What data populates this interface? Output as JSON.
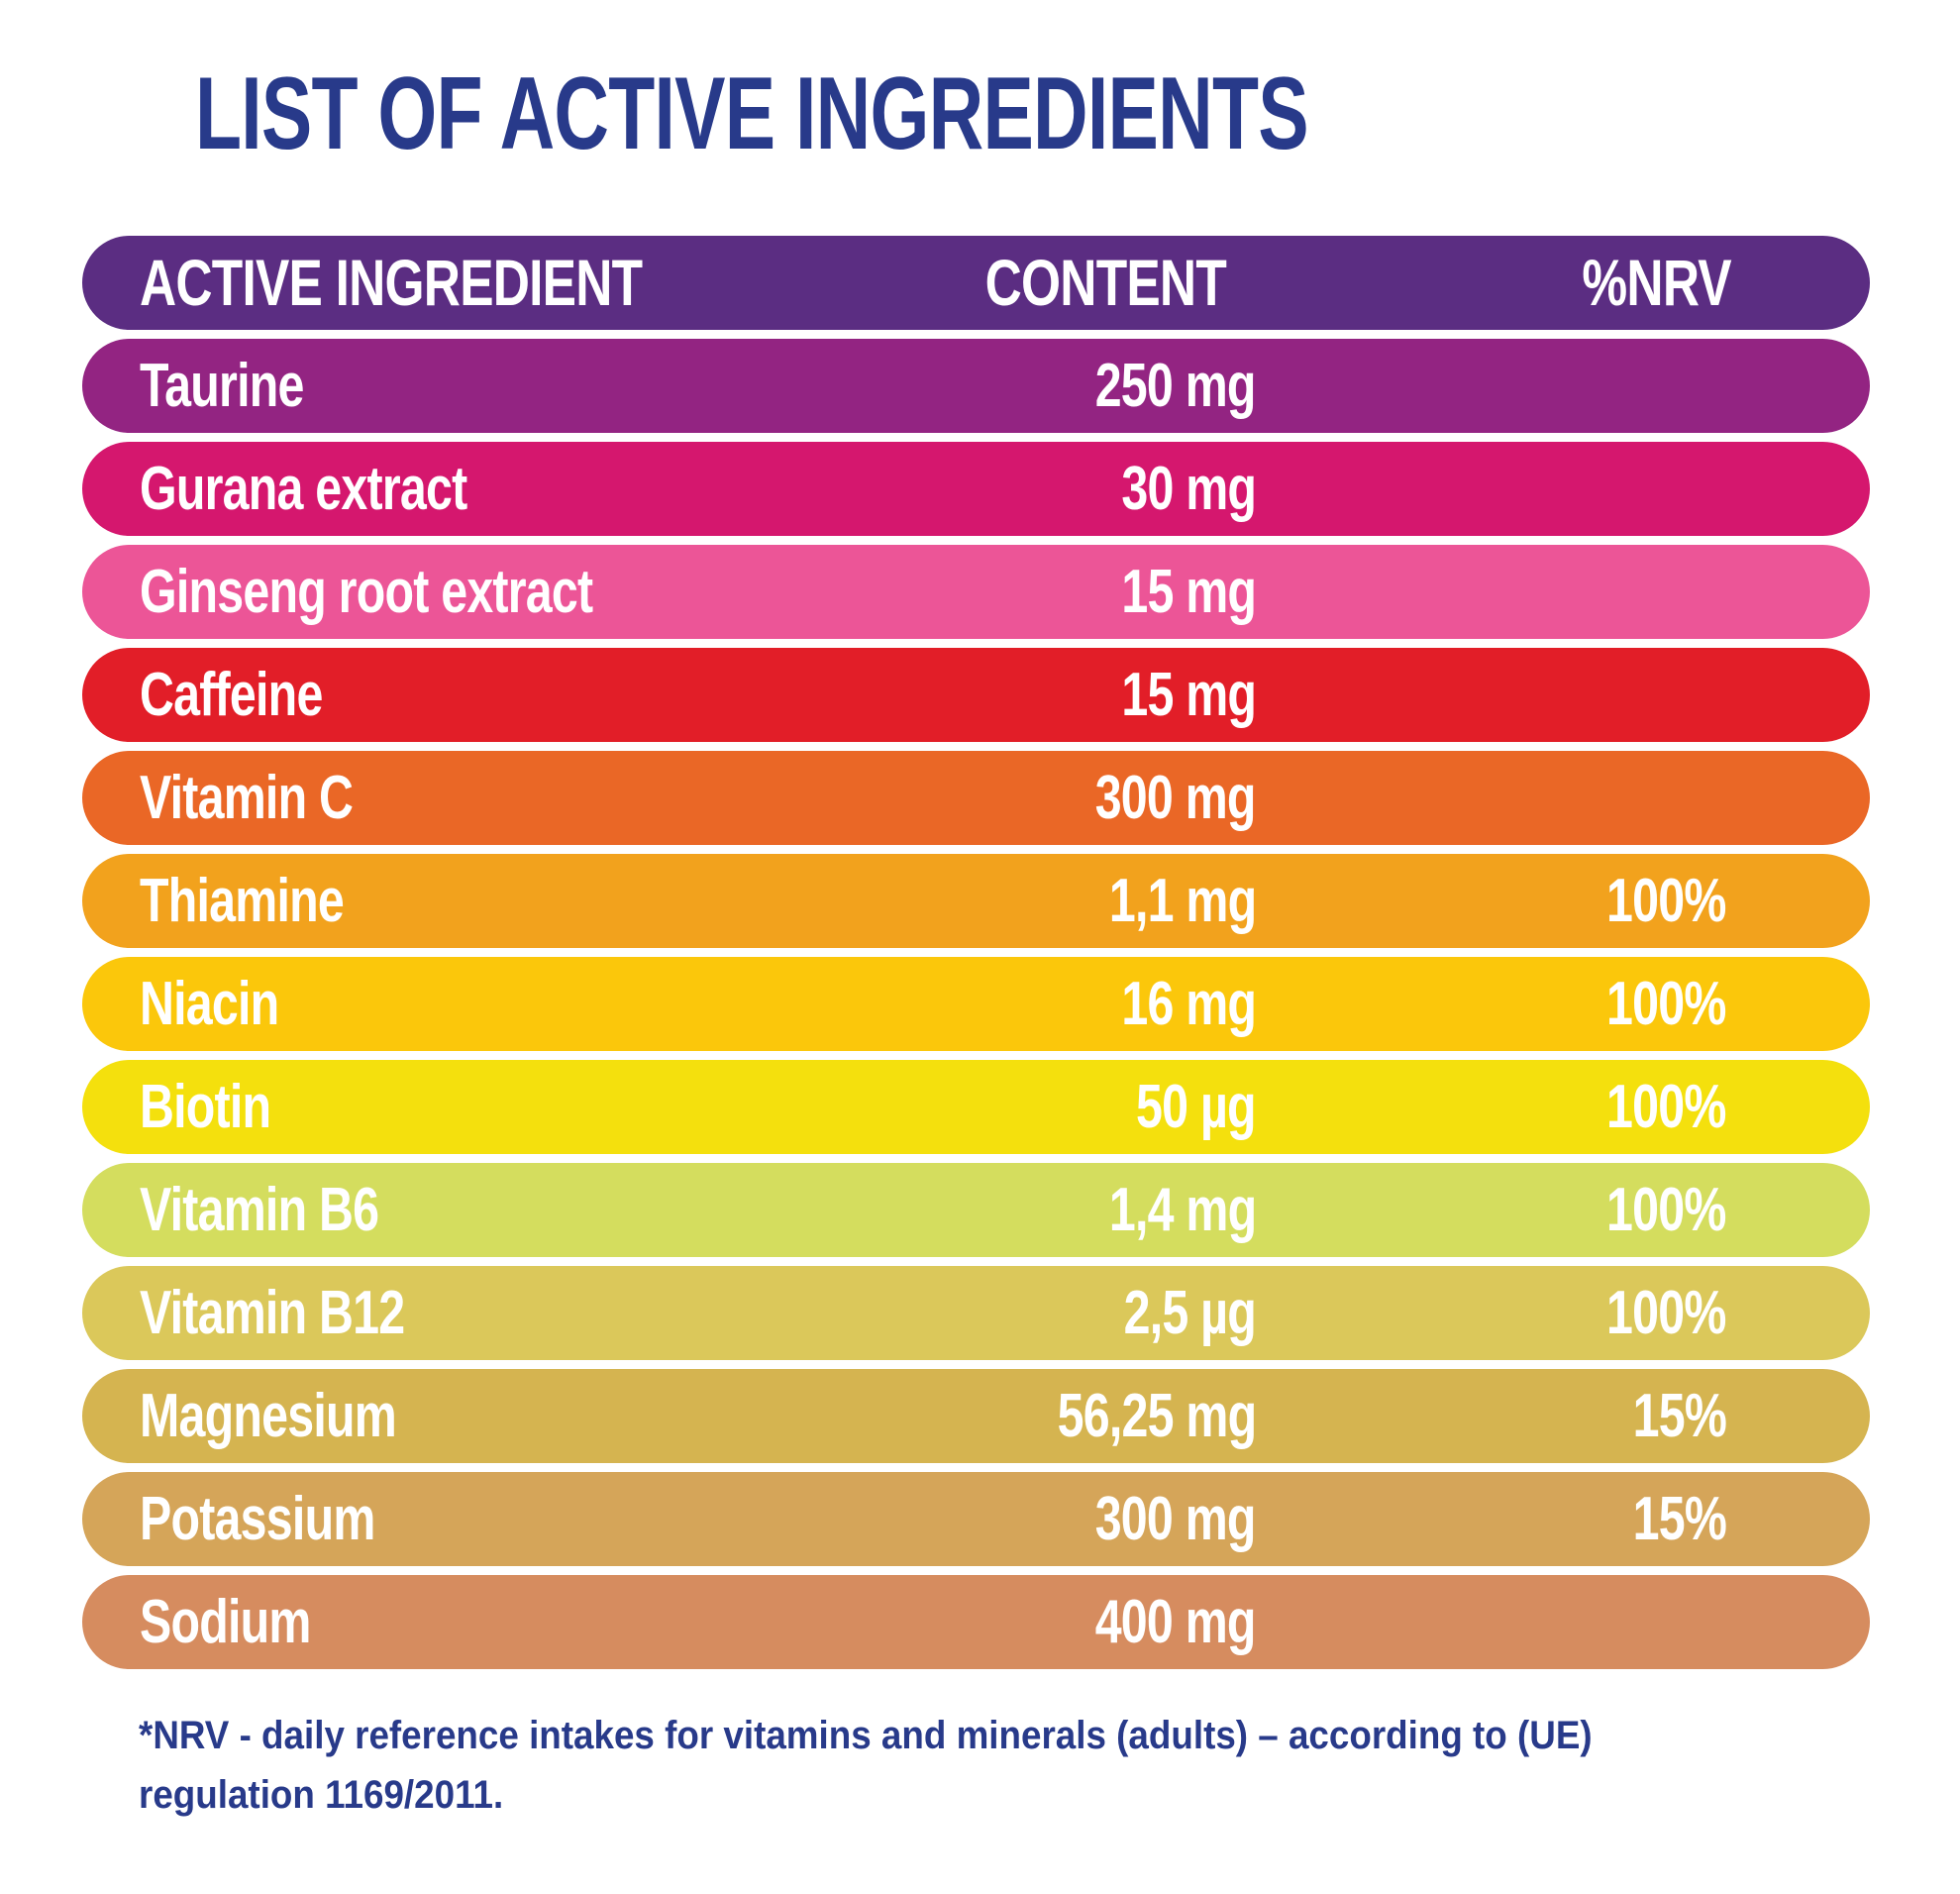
{
  "title": "LIST OF ACTIVE INGREDIENTS",
  "header": {
    "ingredient": "ACTIVE INGREDIENT",
    "content": "CONTENT",
    "nrv": "%NRV",
    "color": "#5b2d82"
  },
  "rows": [
    {
      "name": "Taurine",
      "content": "250 mg",
      "nrv": "",
      "color": "#932482"
    },
    {
      "name": "Gurana extract",
      "content": "30 mg",
      "nrv": "",
      "color": "#d5176e"
    },
    {
      "name": "Ginseng root extract",
      "content": "15 mg",
      "nrv": "",
      "color": "#ec5597"
    },
    {
      "name": "Caffeine",
      "content": "15 mg",
      "nrv": "",
      "color": "#e21e28"
    },
    {
      "name": "Vitamin C",
      "content": "300 mg",
      "nrv": "",
      "color": "#ea6726"
    },
    {
      "name": "Thiamine",
      "content": "1,1 mg",
      "nrv": "100%",
      "color": "#f2a21d"
    },
    {
      "name": "Niacin",
      "content": "16 mg",
      "nrv": "100%",
      "color": "#fbc70b"
    },
    {
      "name": "Biotin",
      "content": "50 µg",
      "nrv": "100%",
      "color": "#f4e00d"
    },
    {
      "name": "Vitamin B6",
      "content": "1,4 mg",
      "nrv": "100%",
      "color": "#d4dd5e"
    },
    {
      "name": "Vitamin B12",
      "content": "2,5 µg",
      "nrv": "100%",
      "color": "#dbc85a"
    },
    {
      "name": "Magnesium",
      "content": "56,25 mg",
      "nrv": "15%",
      "color": "#d5b450"
    },
    {
      "name": "Potassium",
      "content": "300 mg",
      "nrv": "15%",
      "color": "#d5a559"
    },
    {
      "name": "Sodium",
      "content": "400 mg",
      "nrv": "",
      "color": "#d68c5f"
    }
  ],
  "footnote": {
    "line1": "*NRV - daily reference intakes for vitamins and minerals (adults) – according to (UE)",
    "line2": "regulation 1169/2011."
  },
  "colors": {
    "title": "#283a8a",
    "text": "#ffffff"
  }
}
